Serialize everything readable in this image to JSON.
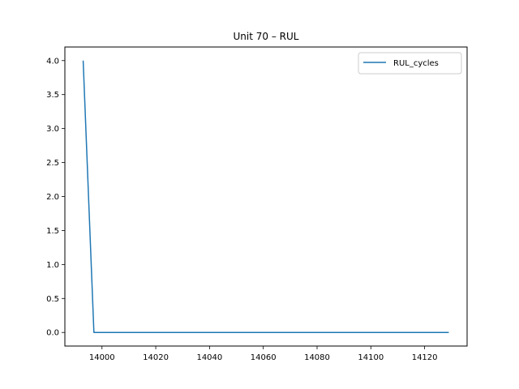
{
  "chart_data": {
    "type": "line",
    "title": "Unit 70  –  RUL",
    "xlabel": "",
    "ylabel": "",
    "xlim": [
      13986.2,
      14135.8
    ],
    "ylim": [
      -0.2,
      4.2
    ],
    "xticks": [
      14000,
      14020,
      14040,
      14060,
      14080,
      14100,
      14120
    ],
    "xtick_labels": [
      "14000",
      "14020",
      "14040",
      "14060",
      "14080",
      "14100",
      "14120"
    ],
    "yticks": [
      0.0,
      0.5,
      1.0,
      1.5,
      2.0,
      2.5,
      3.0,
      3.5,
      4.0
    ],
    "ytick_labels": [
      "0.0",
      "0.5",
      "1.0",
      "1.5",
      "2.0",
      "2.5",
      "3.0",
      "3.5",
      "4.0"
    ],
    "grid": false,
    "legend": "top-right",
    "series": [
      {
        "name": "RUL_cycles",
        "color": "#1f77b4",
        "x": [
          13993,
          13997,
          14129
        ],
        "y": [
          4.0,
          0.0,
          0.0
        ]
      }
    ]
  }
}
